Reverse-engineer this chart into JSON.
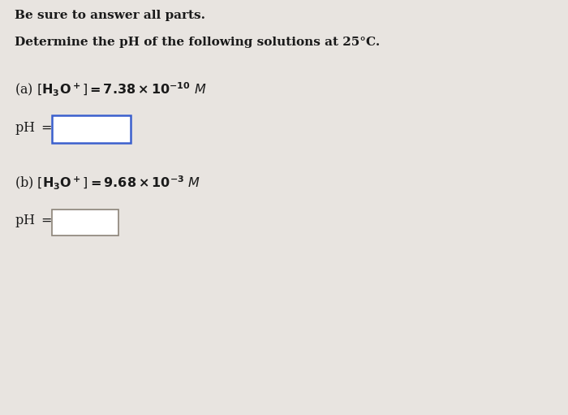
{
  "title_line": "Be sure to answer all parts.",
  "subtitle": "Determine the pH of the following solutions at 25°C.",
  "bg_color": "#e8e4e0",
  "text_color": "#1a1a1a",
  "box_color_a": "#3a5fcd",
  "box_color_b": "#8b8378",
  "fig_width": 7.0,
  "fig_height": 5.11
}
